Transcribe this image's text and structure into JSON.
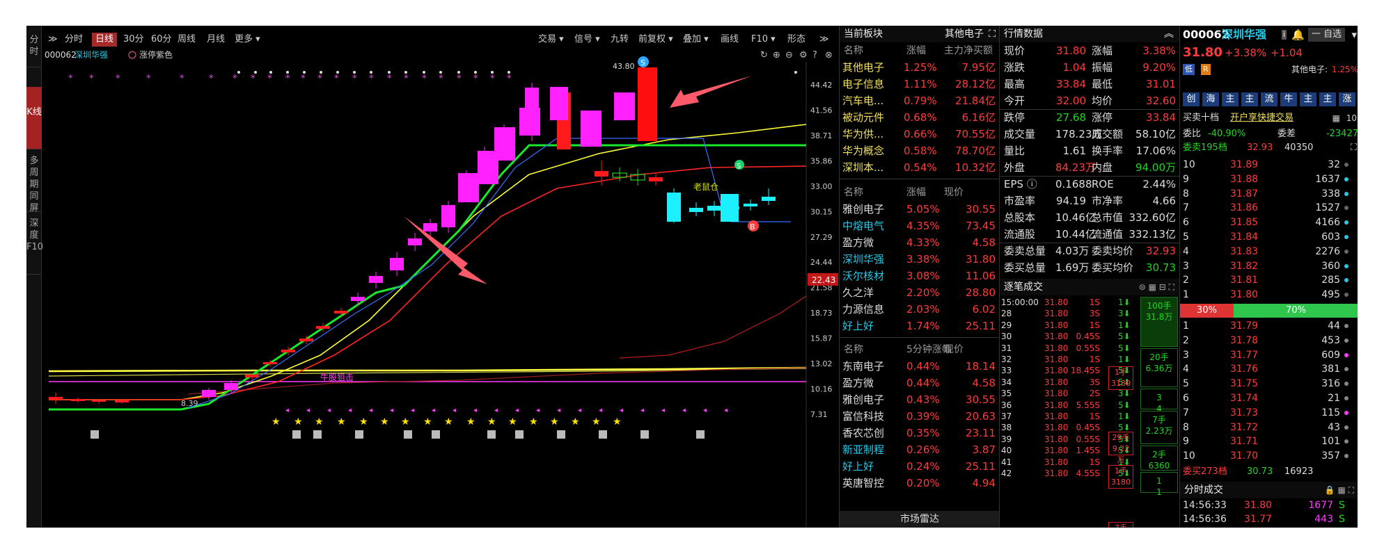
{
  "left_tabs": [
    "分时",
    "K线",
    "多周期同屏",
    "深度F10"
  ],
  "toolbar": {
    "items": [
      "分时",
      "日线",
      "30分",
      "60分",
      "周线",
      "月线",
      "更多 ▾"
    ],
    "right_items": [
      "交易 ▾",
      "信号 ▾",
      "九转",
      "前复权 ▾",
      "叠加 ▾",
      "画线",
      "F10 ▾",
      "形态"
    ]
  },
  "chart": {
    "code": "000062",
    "name": "深圳华强",
    "indicator": "涨停紫色",
    "price_tag": "22.43",
    "price_labels": [
      "44.42",
      "41.56",
      "38.71",
      "35.86",
      "33.00",
      "30.15",
      "27.29",
      "24.44",
      "21.58",
      "18.73",
      "15.87",
      "13.02",
      "10.16",
      "7.31"
    ],
    "high_label": "43.80",
    "annot_sell": "S",
    "annot_buy": "B",
    "annot_laoshu": "老鼠仓",
    "annot_niu": "牛股狙击",
    "low_label": "8.39"
  },
  "board": {
    "title": "当前板块",
    "title_right": "其他电子",
    "t1_headers": [
      "名称",
      "涨幅",
      "主力净买额"
    ],
    "t1_rows": [
      [
        "其他电子",
        "1.25%",
        "7.95亿"
      ],
      [
        "电子信息",
        "1.11%",
        "28.12亿"
      ],
      [
        "汽车电...",
        "0.79%",
        "21.84亿"
      ],
      [
        "被动元件",
        "0.68%",
        "6.16亿"
      ],
      [
        "华为供...",
        "0.66%",
        "70.55亿"
      ],
      [
        "华为概念",
        "0.58%",
        "78.70亿"
      ],
      [
        "深圳本...",
        "0.54%",
        "10.32亿"
      ]
    ],
    "t2_headers": [
      "名称",
      "涨幅",
      "现价"
    ],
    "t2_rows": [
      [
        "雅创电子",
        "5.05%",
        "30.55"
      ],
      [
        "中熔电气",
        "4.35%",
        "73.45"
      ],
      [
        "盈方微",
        "4.33%",
        "4.58"
      ],
      [
        "深圳华强",
        "3.38%",
        "31.80"
      ],
      [
        "沃尔核材",
        "3.08%",
        "11.06"
      ],
      [
        "久之洋",
        "2.20%",
        "28.80"
      ],
      [
        "力源信息",
        "2.03%",
        "6.02"
      ],
      [
        "好上好",
        "1.74%",
        "25.11"
      ]
    ],
    "t3_headers": [
      "名称",
      "5分钟涨幅",
      "现价"
    ],
    "t3_rows": [
      [
        "东南电子",
        "0.44%",
        "18.14"
      ],
      [
        "盈方微",
        "0.44%",
        "4.58"
      ],
      [
        "雅创电子",
        "0.43%",
        "30.55"
      ],
      [
        "富信科技",
        "0.39%",
        "20.63"
      ],
      [
        "香农芯创",
        "0.35%",
        "23.11"
      ],
      [
        "新亚制程",
        "0.26%",
        "3.87"
      ],
      [
        "好上好",
        "0.24%",
        "25.11"
      ],
      [
        "英唐智控",
        "0.20%",
        "4.94"
      ]
    ],
    "bottom": "市场雷达"
  },
  "quote": {
    "title": "行情数据",
    "rows": [
      [
        "现价",
        "31.80",
        "涨幅",
        "3.38%"
      ],
      [
        "涨跌",
        "1.04",
        "振幅",
        "9.20%"
      ],
      [
        "最高",
        "33.84",
        "最低",
        "31.01"
      ],
      [
        "今开",
        "32.00",
        "均价",
        "32.60"
      ],
      [
        "跌停",
        "27.68",
        "涨停",
        "33.84"
      ],
      [
        "成交量",
        "178.23万",
        "成交额",
        "58.10亿"
      ],
      [
        "量比",
        "1.61",
        "换手率",
        "17.06%"
      ],
      [
        "外盘",
        "84.23万",
        "内盘",
        "94.00万"
      ],
      [
        "EPS ⓘ",
        "0.1688",
        "ROE",
        "2.44%"
      ],
      [
        "市盈率",
        "94.19",
        "市净率",
        "4.66"
      ],
      [
        "总股本",
        "10.46亿",
        "总市值",
        "332.60亿"
      ],
      [
        "流通股",
        "10.44亿",
        "流通值",
        "332.13亿"
      ],
      [
        "委卖总量",
        "4.03万",
        "委卖均价",
        "32.93"
      ],
      [
        "委买总量",
        "1.69万",
        "委买均价",
        "30.73"
      ]
    ],
    "ticks_title": "逐笔成交",
    "ticks": [
      [
        "15:00:00",
        "31.80",
        "1S",
        "1"
      ],
      [
        "28",
        "31.80",
        "3S",
        "3"
      ],
      [
        "29",
        "31.80",
        "1S",
        "1"
      ],
      [
        "30",
        "31.80",
        "0.45S",
        "5"
      ],
      [
        "31",
        "31.80",
        "0.55S",
        "5"
      ],
      [
        "32",
        "31.80",
        "1S",
        "1"
      ],
      [
        "33",
        "31.80",
        "18.45S",
        "5"
      ],
      [
        "34",
        "31.80",
        "3S",
        "5"
      ],
      [
        "35",
        "31.80",
        "2S",
        "3"
      ],
      [
        "36",
        "31.80",
        "5.55S",
        "5"
      ],
      [
        "37",
        "31.80",
        "1S",
        "1"
      ],
      [
        "38",
        "31.80",
        "0.45S",
        "5"
      ],
      [
        "39",
        "31.80",
        "0.55S",
        "5"
      ],
      [
        "40",
        "31.80",
        "1.45S",
        "5"
      ],
      [
        "41",
        "31.80",
        "1S",
        "1"
      ],
      [
        "42",
        "31.80",
        "4.55S",
        "5"
      ]
    ],
    "blocks": [
      [
        "1手",
        "3180"
      ],
      [
        "29手",
        "9.22万"
      ],
      [
        "1手",
        "3180"
      ],
      [
        "7手",
        "2.23万"
      ]
    ],
    "big": [
      [
        "100手",
        "31.8万"
      ],
      [
        "20手",
        "6.36万"
      ],
      [
        "3",
        "4"
      ],
      [
        "7手",
        "2.23万"
      ],
      [
        "2手",
        "6360"
      ],
      [
        "1",
        "1"
      ]
    ]
  },
  "right": {
    "code": "000062",
    "name": "深圳华强",
    "zixuan": "一 自选",
    "price": "31.80",
    "chg_pct": "+3.38%",
    "chg": "+1.04",
    "tag_low": "低",
    "tag_r": "R",
    "sector": "其他电子:",
    "sector_pct": "1.25%",
    "buttons": [
      "创",
      "海",
      "主",
      "主",
      "流",
      "牛",
      "主",
      "主",
      "涨"
    ],
    "level_label": "买卖十档",
    "level_link": "开户享快捷交易",
    "weibi_label": "委比",
    "weibi": "-40.90%",
    "weicha_label": "委差",
    "weicha": "-23427",
    "sell_total_label": "委卖195档",
    "sell_total_price": "32.93",
    "sell_total_vol": "40350",
    "asks": [
      [
        "10",
        "31.89",
        "32"
      ],
      [
        "9",
        "31.88",
        "1637"
      ],
      [
        "8",
        "31.87",
        "338"
      ],
      [
        "7",
        "31.86",
        "1527"
      ],
      [
        "6",
        "31.85",
        "4166"
      ],
      [
        "5",
        "31.84",
        "603"
      ],
      [
        "4",
        "31.83",
        "2276"
      ],
      [
        "3",
        "31.82",
        "360"
      ],
      [
        "2",
        "31.81",
        "285"
      ],
      [
        "1",
        "31.80",
        "495"
      ]
    ],
    "ratio_sell": "30%",
    "ratio_buy": "70%",
    "bids": [
      [
        "1",
        "31.79",
        "44"
      ],
      [
        "2",
        "31.78",
        "453"
      ],
      [
        "3",
        "31.77",
        "609"
      ],
      [
        "4",
        "31.76",
        "381"
      ],
      [
        "5",
        "31.75",
        "316"
      ],
      [
        "6",
        "31.74",
        "21"
      ],
      [
        "7",
        "31.73",
        "115"
      ],
      [
        "8",
        "31.72",
        "43"
      ],
      [
        "9",
        "31.71",
        "101"
      ],
      [
        "10",
        "31.70",
        "357"
      ]
    ],
    "buy_total_label": "委买273档",
    "buy_total_price": "30.73",
    "buy_total_vol": "16923",
    "trades_title": "分时成交",
    "trades": [
      [
        "14:56:33",
        "31.80",
        "1677",
        "S"
      ],
      [
        "14:56:36",
        "31.77",
        "443",
        "S"
      ]
    ]
  },
  "colors": {
    "up": "#ff3b3b",
    "down": "#21d321",
    "magenta": "#ff00ff",
    "cyan": "#00e5ff",
    "yellow": "#ffff33"
  }
}
